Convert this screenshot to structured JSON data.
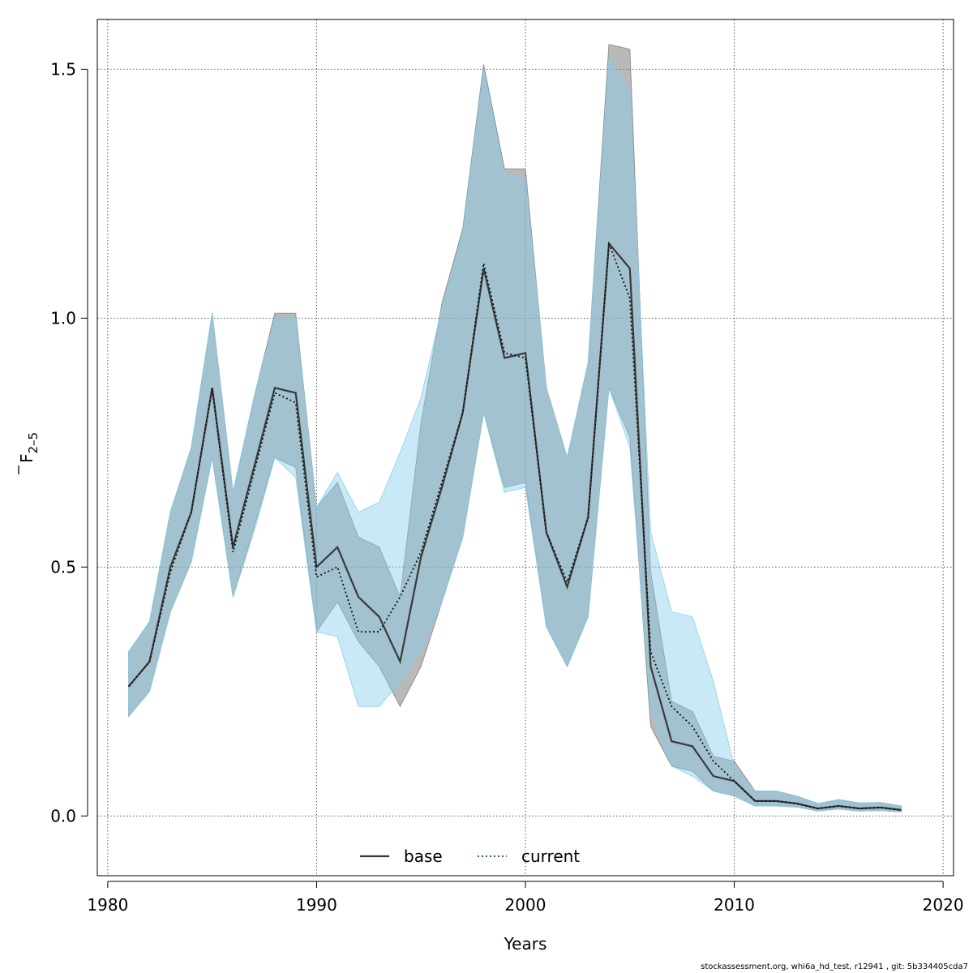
{
  "chart_data": {
    "type": "line",
    "xlabel": "Years",
    "ylabel_main": "F",
    "ylabel_sub": "2–5",
    "xlim": [
      1979.5,
      2020.5
    ],
    "ylim": [
      -0.12,
      1.6
    ],
    "x_ticks": [
      1980,
      1990,
      2000,
      2010,
      2020
    ],
    "x_tick_labels": [
      "1980",
      "1990",
      "2000",
      "2010",
      "2020"
    ],
    "y_ticks": [
      0,
      0.5,
      1,
      1.5
    ],
    "y_tick_labels": [
      "0.0",
      "0.5",
      "1.0",
      "1.5"
    ],
    "grid": true,
    "legend_position": "bottom",
    "x": [
      1981,
      1982,
      1983,
      1984,
      1985,
      1986,
      1987,
      1988,
      1989,
      1990,
      1991,
      1992,
      1993,
      1994,
      1995,
      1996,
      1997,
      1998,
      1999,
      2000,
      2001,
      2002,
      2003,
      2004,
      2005,
      2006,
      2007,
      2008,
      2009,
      2010,
      2011,
      2012,
      2013,
      2014,
      2015,
      2016,
      2017,
      2018
    ],
    "series": [
      {
        "name": "base",
        "color": "#3a3a3a",
        "band_color": "#7f7f7f",
        "line_style": "solid",
        "values": [
          0.26,
          0.31,
          0.5,
          0.61,
          0.86,
          0.54,
          0.7,
          0.86,
          0.85,
          0.5,
          0.54,
          0.44,
          0.4,
          0.31,
          0.52,
          0.66,
          0.81,
          1.1,
          0.92,
          0.93,
          0.57,
          0.46,
          0.6,
          1.15,
          1.1,
          0.3,
          0.15,
          0.14,
          0.08,
          0.07,
          0.03,
          0.03,
          0.025,
          0.015,
          0.02,
          0.015,
          0.017,
          0.012
        ],
        "lower": [
          0.2,
          0.25,
          0.41,
          0.51,
          0.72,
          0.44,
          0.58,
          0.72,
          0.7,
          0.37,
          0.43,
          0.35,
          0.3,
          0.22,
          0.3,
          0.43,
          0.56,
          0.81,
          0.66,
          0.67,
          0.38,
          0.3,
          0.4,
          0.86,
          0.76,
          0.18,
          0.1,
          0.09,
          0.05,
          0.04,
          0.02,
          0.02,
          0.018,
          0.01,
          0.014,
          0.01,
          0.011,
          0.008
        ],
        "upper": [
          0.33,
          0.39,
          0.61,
          0.74,
          1.01,
          0.65,
          0.84,
          1.01,
          1.01,
          0.62,
          0.67,
          0.56,
          0.54,
          0.44,
          0.79,
          1.03,
          1.18,
          1.51,
          1.3,
          1.3,
          0.86,
          0.72,
          0.91,
          1.55,
          1.54,
          0.49,
          0.23,
          0.21,
          0.12,
          0.11,
          0.05,
          0.05,
          0.04,
          0.025,
          0.033,
          0.026,
          0.027,
          0.02
        ]
      },
      {
        "name": "current",
        "color": "#111111",
        "band_color": "#87ceeb",
        "line_style": "dotted",
        "values": [
          0.26,
          0.31,
          0.49,
          0.61,
          0.86,
          0.53,
          0.69,
          0.85,
          0.83,
          0.48,
          0.5,
          0.37,
          0.37,
          0.44,
          0.53,
          0.67,
          0.81,
          1.11,
          0.93,
          0.92,
          0.57,
          0.47,
          0.6,
          1.15,
          1.04,
          0.33,
          0.22,
          0.18,
          0.11,
          0.07,
          0.03,
          0.03,
          0.025,
          0.015,
          0.02,
          0.015,
          0.017,
          0.012
        ],
        "lower": [
          0.2,
          0.25,
          0.41,
          0.51,
          0.72,
          0.44,
          0.57,
          0.72,
          0.68,
          0.37,
          0.36,
          0.22,
          0.22,
          0.27,
          0.33,
          0.43,
          0.56,
          0.81,
          0.65,
          0.66,
          0.38,
          0.3,
          0.4,
          0.86,
          0.74,
          0.21,
          0.1,
          0.08,
          0.05,
          0.04,
          0.02,
          0.02,
          0.018,
          0.01,
          0.014,
          0.01,
          0.011,
          0.008
        ],
        "upper": [
          0.33,
          0.39,
          0.61,
          0.74,
          1.01,
          0.65,
          0.84,
          1.0,
          1.0,
          0.62,
          0.69,
          0.61,
          0.63,
          0.73,
          0.84,
          1.02,
          1.17,
          1.5,
          1.29,
          1.28,
          0.86,
          0.72,
          0.91,
          1.52,
          1.46,
          0.57,
          0.41,
          0.4,
          0.27,
          0.1,
          0.05,
          0.05,
          0.04,
          0.025,
          0.033,
          0.026,
          0.027,
          0.02
        ]
      }
    ]
  },
  "footer_text": "stockassessment.org, whi6a_hd_test, r12941 , git: 5b334405cda7"
}
